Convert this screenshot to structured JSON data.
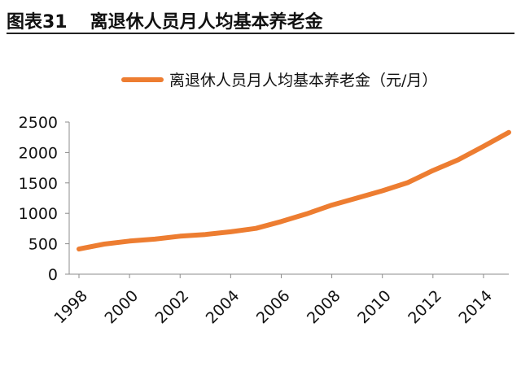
{
  "figure": {
    "number": "图表31",
    "title": "离退休人员月人均基本养老金"
  },
  "colors": {
    "series": "#ED7D31",
    "axis": "#8c8c8c"
  },
  "chart_data": {
    "type": "line",
    "x": [
      1998,
      1999,
      2000,
      2001,
      2002,
      2003,
      2004,
      2005,
      2006,
      2007,
      2008,
      2009,
      2010,
      2011,
      2012,
      2013,
      2014,
      2015
    ],
    "series": [
      {
        "name": "离退休人员月人均基本养老金（元/月）",
        "values": [
          413,
          495,
          544,
          576,
          625,
          652,
          697,
          753,
          865,
          990,
          1135,
          1252,
          1370,
          1504,
          1703,
          1880,
          2100,
          2330
        ]
      }
    ],
    "xticks": [
      "1998",
      "2000",
      "2002",
      "2004",
      "2006",
      "2008",
      "2010",
      "2012",
      "2014"
    ],
    "yticks": [
      "0",
      "500",
      "1000",
      "1500",
      "2000",
      "2500"
    ],
    "ylim": [
      0,
      2500
    ],
    "xlim": [
      1998,
      2015
    ],
    "grid": false,
    "legend": "top-center"
  }
}
